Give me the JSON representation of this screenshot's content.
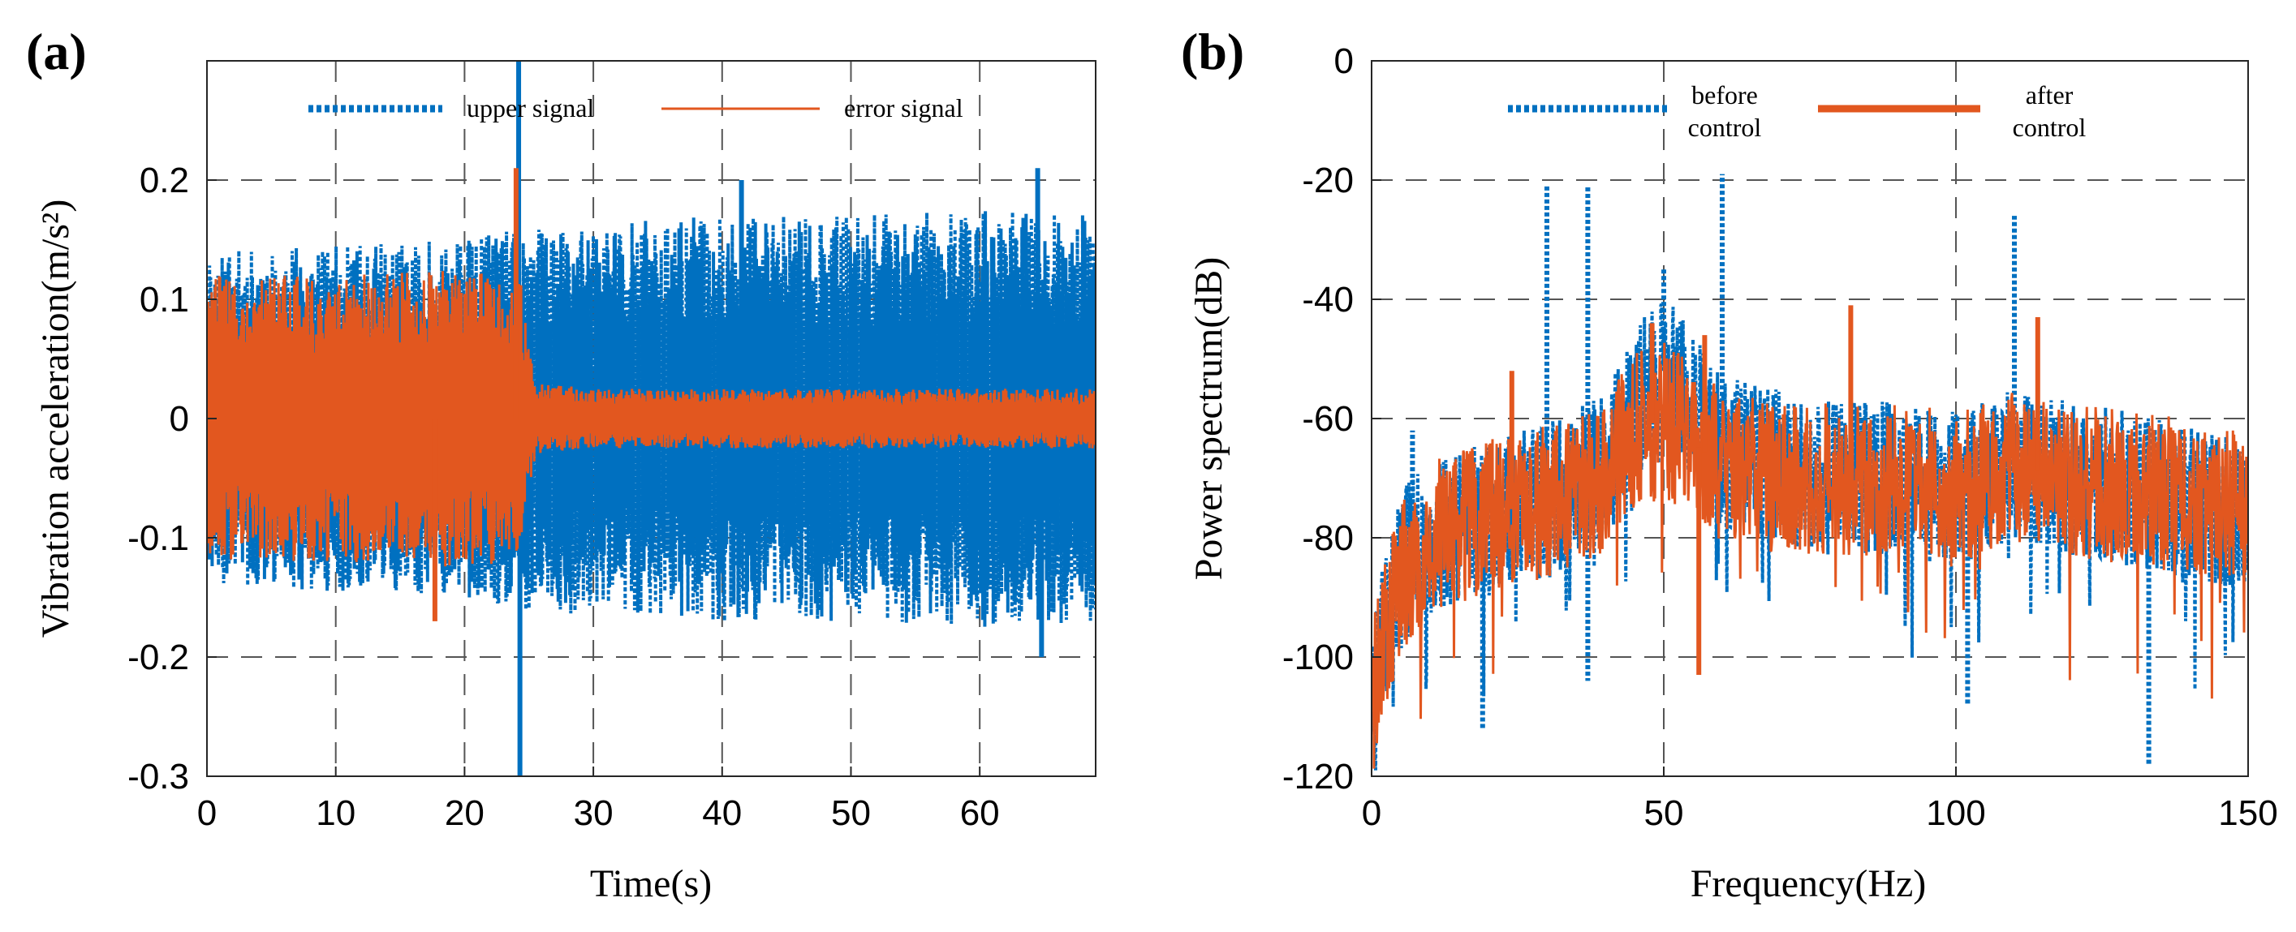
{
  "chart_data": [
    {
      "panel_label": "(a)",
      "type": "line",
      "title": "",
      "xlabel": "Time(s)",
      "ylabel": "Vibration acceleration(m/s²)",
      "xlim": [
        0,
        69
      ],
      "ylim": [
        -0.3,
        0.3
      ],
      "xticks": [
        0,
        10,
        20,
        30,
        40,
        50,
        60
      ],
      "xtick_labels": [
        "0",
        "10",
        "20",
        "30",
        "40",
        "50",
        "60"
      ],
      "yticks": [
        0.2,
        0.1,
        0,
        -0.1,
        -0.2,
        -0.3
      ],
      "ytick_labels": [
        "0.2",
        "0.1",
        "0",
        "-0.1",
        "-0.2",
        "-0.3"
      ],
      "grid": "dashed",
      "legend_position": "top",
      "control_switch_time": 24.3,
      "series": [
        {
          "name": "upper signal",
          "color": "#0070C0",
          "style": "dotted",
          "envelope": {
            "t": [
              0,
              10,
              20,
              24.3,
              30,
              40,
              50,
              60,
              69
            ],
            "amp": [
              0.14,
              0.145,
              0.15,
              0.16,
              0.165,
              0.17,
              0.17,
              0.175,
              0.17
            ]
          },
          "peaks": [
            {
              "x": 24.2,
              "y": 0.3
            },
            {
              "x": 24.3,
              "y": -0.3
            },
            {
              "x": 41.5,
              "y": 0.2
            },
            {
              "x": 64.5,
              "y": 0.21
            },
            {
              "x": 64.8,
              "y": -0.2
            }
          ]
        },
        {
          "name": "error signal",
          "color": "#E2571F",
          "style": "solid",
          "envelope": {
            "t": [
              0,
              10,
              20,
              24.3,
              25.5,
              30,
              40,
              50,
              60,
              69
            ],
            "amp": [
              0.12,
              0.12,
              0.125,
              0.12,
              0.03,
              0.025,
              0.025,
              0.025,
              0.025,
              0.025
            ]
          },
          "peaks": [
            {
              "x": 24.0,
              "y": 0.21
            },
            {
              "x": 17.7,
              "y": -0.17
            }
          ]
        }
      ]
    },
    {
      "panel_label": "(b)",
      "type": "line",
      "title": "",
      "xlabel": "Frequency(Hz)",
      "ylabel": "Power spectrum(dB)",
      "xlim": [
        0,
        150
      ],
      "ylim": [
        -120,
        0
      ],
      "xticks": [
        0,
        50,
        100,
        150
      ],
      "xtick_labels": [
        "0",
        "50",
        "100",
        "150"
      ],
      "yticks": [
        0,
        -20,
        -40,
        -60,
        -80,
        -100,
        -120
      ],
      "ytick_labels": [
        "0",
        "-20",
        "-40",
        "-60",
        "-80",
        "-100",
        "-120"
      ],
      "grid": "dashed",
      "legend_position": "top",
      "series": [
        {
          "name": "before control",
          "name_lines": [
            "before",
            "control"
          ],
          "color": "#0070C0",
          "style": "dotted",
          "baseline": {
            "f": [
              0,
              3,
              6,
              10,
              20,
              30,
              40,
              45,
              50,
              55,
              60,
              70,
              80,
              90,
              100,
              110,
              120,
              130,
              140,
              150
            ],
            "db": [
              -108,
              -92,
              -84,
              -80,
              -76,
              -74,
              -68,
              -58,
              -52,
              -58,
              -66,
              -68,
              -70,
              -70,
              -72,
              -68,
              -70,
              -72,
              -74,
              -76
            ]
          },
          "peaks": [
            {
              "x": 30,
              "y": -21
            },
            {
              "x": 37,
              "y": -21
            },
            {
              "x": 50,
              "y": -35
            },
            {
              "x": 60,
              "y": -19
            },
            {
              "x": 110,
              "y": -26
            },
            {
              "x": 7,
              "y": -62
            },
            {
              "x": 19,
              "y": -112
            },
            {
              "x": 37,
              "y": -104
            },
            {
              "x": 102,
              "y": -108
            },
            {
              "x": 133,
              "y": -118
            }
          ]
        },
        {
          "name": "after control",
          "name_lines": [
            "after",
            "control"
          ],
          "color": "#E2571F",
          "style": "solid",
          "baseline": {
            "f": [
              0,
              3,
              6,
              10,
              20,
              30,
              40,
              45,
              50,
              55,
              60,
              70,
              80,
              90,
              100,
              110,
              120,
              130,
              140,
              150
            ],
            "db": [
              -108,
              -94,
              -85,
              -80,
              -76,
              -74,
              -70,
              -62,
              -60,
              -64,
              -68,
              -70,
              -70,
              -70,
              -72,
              -68,
              -70,
              -72,
              -73,
              -74
            ]
          },
          "peaks": [
            {
              "x": 24,
              "y": -52
            },
            {
              "x": 48,
              "y": -44
            },
            {
              "x": 57,
              "y": -46
            },
            {
              "x": 82,
              "y": -41
            },
            {
              "x": 114,
              "y": -43
            },
            {
              "x": 56,
              "y": -103
            },
            {
              "x": 1,
              "y": -111
            }
          ]
        }
      ]
    }
  ]
}
